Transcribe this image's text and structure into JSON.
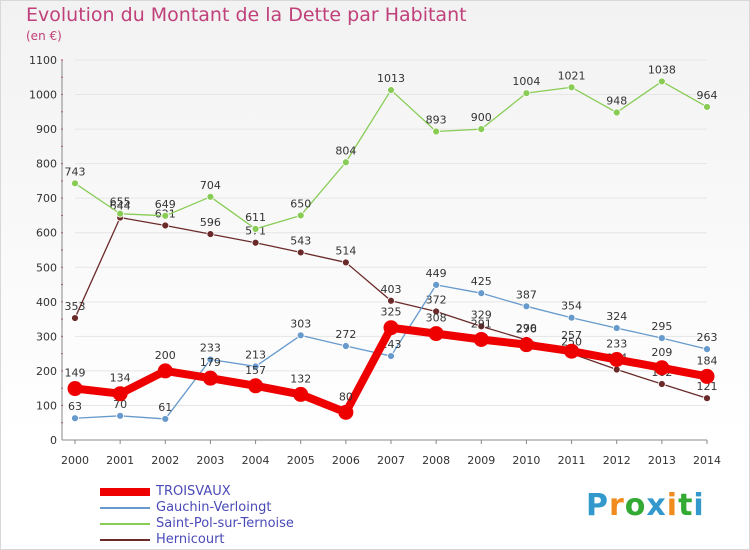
{
  "title": "Evolution du Montant de la Dette par Habitant",
  "subtitle": "(en €)",
  "chart_data": {
    "type": "line",
    "title": "Evolution du Montant de la Dette par Habitant",
    "ylabel": "(en €)",
    "x": [
      "2000",
      "2001",
      "2002",
      "2003",
      "2004",
      "2005",
      "2006",
      "2007",
      "2008",
      "2009",
      "2010",
      "2011",
      "2012",
      "2013",
      "2014"
    ],
    "ylim": [
      0,
      1100
    ],
    "yticks": [
      0,
      100,
      200,
      300,
      400,
      500,
      600,
      700,
      800,
      900,
      1000,
      1100
    ],
    "grid": true,
    "legend_position": "bottom-left",
    "series": [
      {
        "name": "TROISVAUX",
        "color": "#ee0000",
        "values": [
          149,
          134,
          200,
          179,
          157,
          132,
          80,
          325,
          308,
          291,
          276,
          257,
          233,
          209,
          184
        ]
      },
      {
        "name": "Gauchin-Verloingt",
        "color": "#6699cc",
        "values": [
          63,
          70,
          61,
          233,
          213,
          303,
          272,
          243,
          449,
          425,
          387,
          354,
          324,
          295,
          263
        ]
      },
      {
        "name": "Saint-Pol-sur-Ternoise",
        "color": "#88cc55",
        "values": [
          743,
          655,
          649,
          704,
          611,
          650,
          804,
          1013,
          893,
          900,
          1004,
          1021,
          948,
          1038,
          964
        ]
      },
      {
        "name": "Hernicourt",
        "color": "#6b2a2a",
        "values": [
          353,
          644,
          621,
          596,
          571,
          543,
          514,
          403,
          372,
          329,
          290,
          250,
          204,
          162,
          121
        ]
      }
    ]
  },
  "logo": {
    "letters": [
      "P",
      "r",
      "o",
      "x",
      "i",
      "t",
      "i"
    ],
    "colors": [
      "#3399cc",
      "#f08c1e",
      "#33aa33",
      "#3399cc",
      "#f08c1e",
      "#33aa33",
      "#3399cc"
    ]
  }
}
